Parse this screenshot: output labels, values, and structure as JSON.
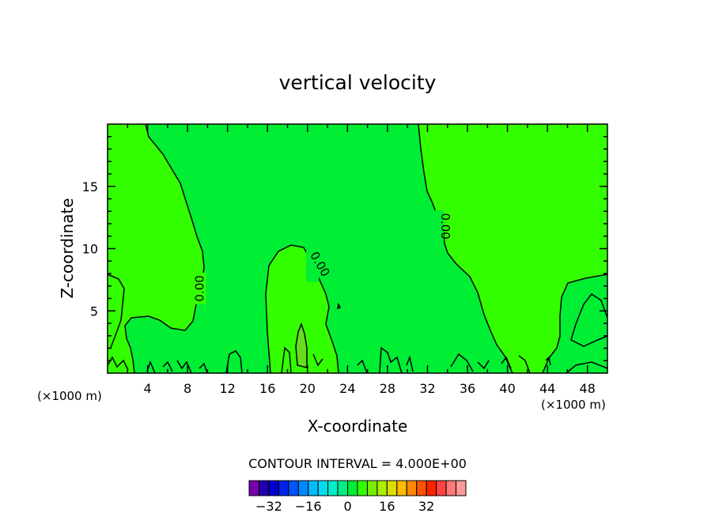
{
  "chart_data": {
    "type": "contour",
    "title": "vertical velocity",
    "xlabel": "X-coordinate",
    "ylabel": "Z-coordinate",
    "x_unit_label": "(×1000 m)",
    "xlim": [
      0,
      50
    ],
    "ylim": [
      0,
      20
    ],
    "x_ticks": [
      4,
      8,
      12,
      16,
      20,
      24,
      28,
      32,
      36,
      40,
      44,
      48
    ],
    "y_ticks": [
      5,
      10,
      15
    ],
    "contour_interval_text": "CONTOUR INTERVAL = 4.000E+00",
    "contour_labels": [
      {
        "text": "0.00",
        "x": 9.2,
        "z": 6.8
      },
      {
        "text": "0.00",
        "x": 20.5,
        "z": 8.6
      },
      {
        "text": "0.00",
        "x": 33.0,
        "z": 11.8
      }
    ],
    "colors": {
      "background_field": "#00ee33",
      "positive_region": "#33ff00",
      "strong_positive": "#66dd22",
      "contour_line": "#000000"
    },
    "colorbar": {
      "colors": [
        "#7700aa",
        "#2200aa",
        "#0000cc",
        "#0022ee",
        "#0055ff",
        "#0088ff",
        "#00bbff",
        "#00ddee",
        "#00eecc",
        "#00ee88",
        "#00ee33",
        "#33ff00",
        "#77ee00",
        "#aaee00",
        "#dddd00",
        "#ffbb00",
        "#ff8800",
        "#ff5500",
        "#ff2200",
        "#ff4444",
        "#ff7777",
        "#ff9999"
      ],
      "tick_labels": [
        "−32",
        "−16",
        "0",
        "16",
        "32"
      ],
      "tick_values": [
        -32,
        -16,
        0,
        16,
        32
      ],
      "range": [
        -40,
        48
      ]
    }
  }
}
